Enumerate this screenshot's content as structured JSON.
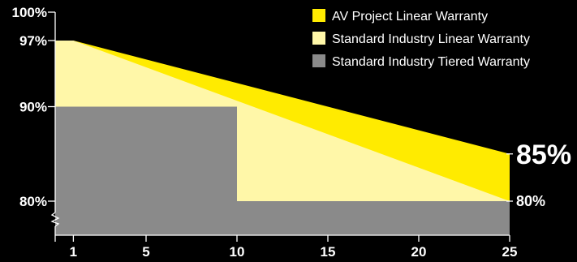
{
  "chart_data": {
    "type": "area",
    "title": "",
    "xlabel": "",
    "ylabel": "",
    "xlim": [
      0,
      25
    ],
    "ylim": [
      77,
      100
    ],
    "x_ticks": [
      1,
      5,
      10,
      15,
      20,
      25
    ],
    "y_ticks": [
      {
        "value": 100,
        "label": "100%"
      },
      {
        "value": 97,
        "label": "97%"
      },
      {
        "value": 90,
        "label": "90%"
      },
      {
        "value": 80,
        "label": "80%"
      }
    ],
    "axis_break": true,
    "grid": false,
    "legend_position": "top-right",
    "series": [
      {
        "name": "AV Project Linear Warranty",
        "color": "#FFEB00",
        "x": [
          0,
          1,
          25
        ],
        "y": [
          97,
          97,
          85
        ]
      },
      {
        "name": "Standard Industry Linear Warranty",
        "color": "#FFF7A8",
        "x": [
          0,
          1,
          25
        ],
        "y": [
          97,
          97,
          80
        ]
      },
      {
        "name": "Standard Industry Tiered Warranty",
        "color": "#8A8A8A",
        "x": [
          0,
          10,
          10,
          25
        ],
        "y": [
          90,
          90,
          80,
          80
        ]
      }
    ],
    "annotations": [
      {
        "x": 25,
        "y": 85,
        "text": "85%",
        "emphasis": true
      },
      {
        "x": 25,
        "y": 80,
        "text": "80%",
        "emphasis": false
      }
    ]
  }
}
